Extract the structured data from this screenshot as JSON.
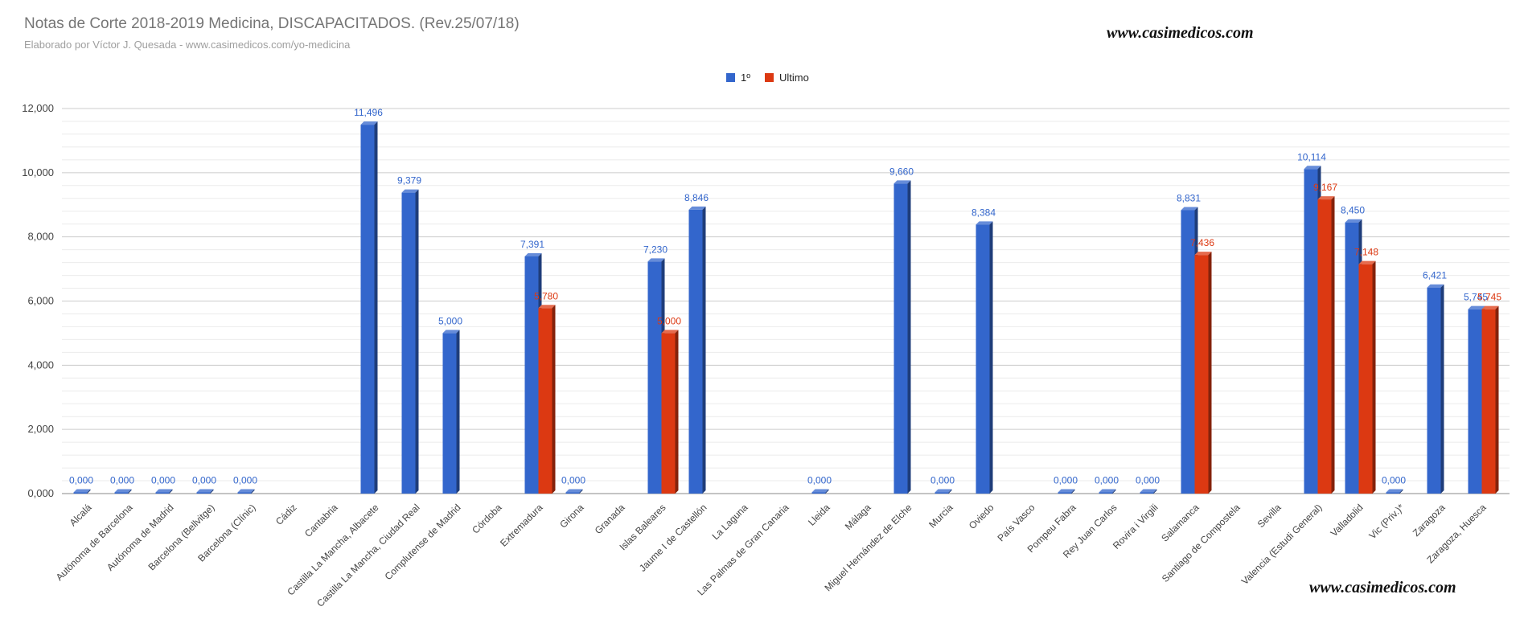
{
  "watermarks": [
    "www.casimedicos.com",
    "www.casimedicos.com"
  ],
  "chart_data": {
    "type": "bar",
    "title": "Notas de Corte 2018-2019 Medicina, DISCAPACITADOS. (Rev.25/07/18)",
    "subtitle": "Elaborado por Víctor J. Quesada - www.casimedicos.com/yo-medicina",
    "categories": [
      "Alcalá",
      "Autónoma de Barcelona",
      "Autónoma de Madrid",
      "Barcelona (Bellvitge)",
      "Barcelona (Clínic)",
      "Cádiz",
      "Cantabria",
      "Castilla La Mancha, Albacete",
      "Castilla La Mancha, Ciudad Real",
      "Complutense de Madrid",
      "Córdoba",
      "Extremadura",
      "Girona",
      "Granada",
      "Islas Baleares",
      "Jaume I de Castellón",
      "La Laguna",
      "Las Palmas de Gran Canaria",
      "Lleida",
      "Málaga",
      "Miguel Hernández de Elche",
      "Murcia",
      "Oviedo",
      "País Vasco",
      "Pompeu Fabra",
      "Rey Juan Carlos",
      "Rovira i Virgili",
      "Salamanca",
      "Santiago de Compostela",
      "Sevilla",
      "Valencia (Estudi General)",
      "Valladolid",
      "Vic (Priv.)*",
      "Zaragoza",
      "Zaragoza, Huesca"
    ],
    "series": [
      {
        "name": "1º",
        "color": "#3366cc",
        "values": [
          0,
          0,
          0,
          0,
          0,
          null,
          null,
          11.496,
          9.379,
          5.0,
          null,
          7.391,
          0,
          null,
          7.23,
          8.846,
          null,
          null,
          0,
          null,
          9.66,
          0,
          8.384,
          null,
          0,
          0,
          0,
          8.831,
          null,
          null,
          10.114,
          8.45,
          0,
          6.421,
          5.745
        ]
      },
      {
        "name": "Ultimo",
        "color": "#dc3912",
        "values": [
          null,
          null,
          null,
          null,
          null,
          null,
          null,
          null,
          null,
          null,
          null,
          5.78,
          null,
          null,
          5.0,
          null,
          null,
          null,
          null,
          null,
          null,
          null,
          null,
          null,
          null,
          null,
          null,
          7.436,
          null,
          null,
          9.167,
          7.148,
          null,
          null,
          5.745
        ]
      }
    ],
    "ylim": [
      0,
      12
    ],
    "yticks": [
      0,
      2,
      4,
      6,
      8,
      10,
      12
    ],
    "grid": true,
    "legend": "top"
  }
}
